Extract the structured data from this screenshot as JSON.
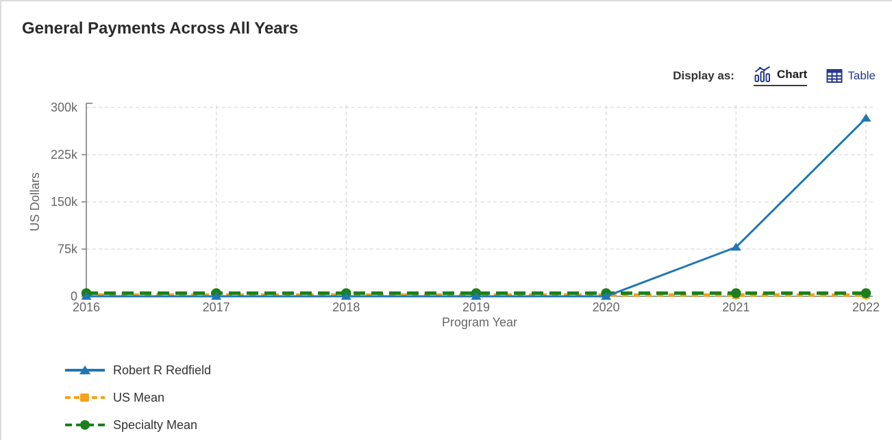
{
  "header": {
    "title": "General Payments Across All Years"
  },
  "display_as": {
    "label": "Display as:",
    "options": [
      {
        "label": "Chart",
        "icon": "bar-chart-icon",
        "active": true
      },
      {
        "label": "Table",
        "icon": "table-icon",
        "active": false
      }
    ]
  },
  "colors": {
    "accent_navy": "#24388F",
    "robert_blue": "#1F77B4",
    "us_mean_orange": "#F5A11B",
    "specialty_green": "#1B801B",
    "axis_gray": "#7F7F7F",
    "grid_gray": "#D9D9D9",
    "tick_text_gray": "#666666",
    "title_text": "#2B2B2B",
    "legend_text": "#333333"
  },
  "chart_data": {
    "type": "line",
    "title": "General Payments Across All Years",
    "xlabel": "Program Year",
    "ylabel": "US Dollars",
    "categories": [
      "2016",
      "2017",
      "2018",
      "2019",
      "2020",
      "2021",
      "2022"
    ],
    "yticks": {
      "values": [
        0,
        75000,
        150000,
        225000,
        300000
      ],
      "labels": [
        "0",
        "75k",
        "150k",
        "225k",
        "300k"
      ]
    },
    "ylim": [
      0,
      300000
    ],
    "grid": true,
    "legend_position": "bottom-left",
    "series": [
      {
        "name": "Robert R Redfield",
        "color": "#1F77B4",
        "line_style": "solid",
        "marker": "triangle",
        "values": [
          0,
          0,
          0,
          0,
          0,
          78000,
          283000
        ]
      },
      {
        "name": "US Mean",
        "color": "#F5A11B",
        "line_style": "dashed",
        "marker": "square",
        "values": [
          2000,
          2000,
          2000,
          2000,
          2000,
          2000,
          2000
        ]
      },
      {
        "name": "Specialty Mean",
        "color": "#1B801B",
        "line_style": "dashed",
        "marker": "circle",
        "values": [
          5000,
          5000,
          5000,
          5000,
          5000,
          5000,
          5000
        ]
      }
    ]
  }
}
